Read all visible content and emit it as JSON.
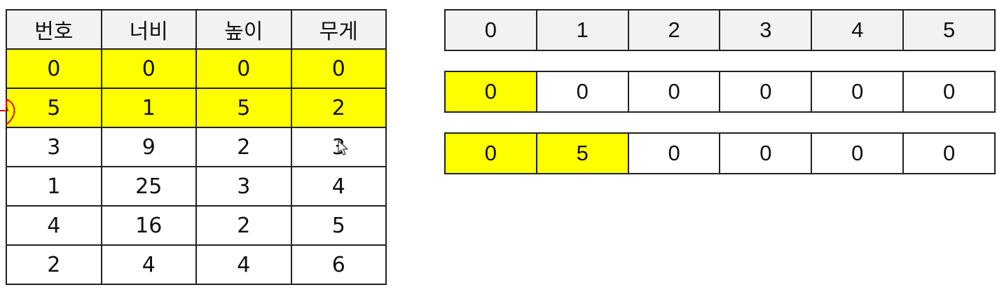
{
  "item_table": {
    "headers": [
      "번호",
      "너비",
      "높이",
      "무게"
    ],
    "rows": [
      {
        "cells": [
          "0",
          "0",
          "0",
          "0"
        ],
        "highlighted": true
      },
      {
        "cells": [
          "5",
          "1",
          "5",
          "2"
        ],
        "highlighted": true
      },
      {
        "cells": [
          "3",
          "9",
          "2",
          "3"
        ],
        "highlighted": false
      },
      {
        "cells": [
          "1",
          "25",
          "3",
          "4"
        ],
        "highlighted": false
      },
      {
        "cells": [
          "4",
          "16",
          "2",
          "5"
        ],
        "highlighted": false
      },
      {
        "cells": [
          "2",
          "4",
          "4",
          "6"
        ],
        "highlighted": false
      }
    ]
  },
  "dp_arrays": {
    "index_labels": [
      "0",
      "1",
      "2",
      "3",
      "4",
      "5"
    ],
    "rows": [
      {
        "values": [
          "0",
          "0",
          "0",
          "0",
          "0",
          "0"
        ],
        "highlighted_count": 1
      },
      {
        "values": [
          "0",
          "5",
          "0",
          "0",
          "0",
          "0"
        ],
        "highlighted_count": 2
      }
    ]
  },
  "colors": {
    "highlight": "#ffff00",
    "header_bg": "#f2f2f2",
    "border": "#222222",
    "marker": "#e01010"
  },
  "icons": {
    "marker": "red-pointer-mark",
    "cursor": "mouse-pointer-icon"
  }
}
